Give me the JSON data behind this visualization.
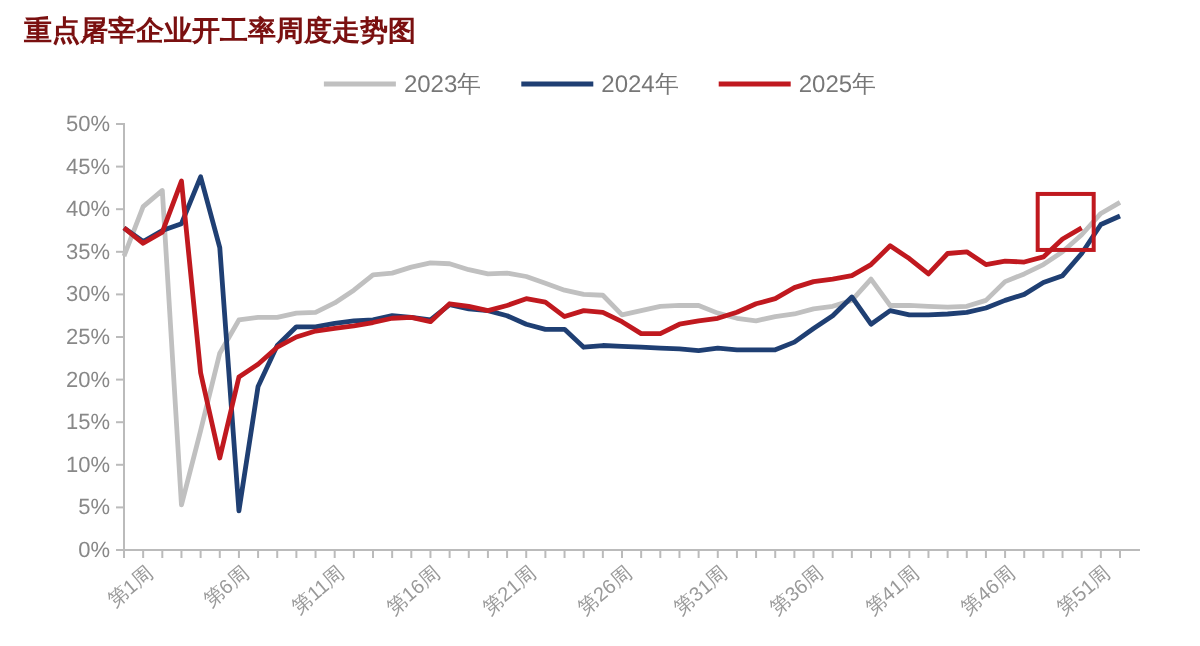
{
  "chart_data": {
    "type": "line",
    "title": "重点屠宰企业开工率周度走势图",
    "categories": [
      "第1周",
      null,
      null,
      null,
      null,
      "第6周",
      null,
      null,
      null,
      null,
      "第11周",
      null,
      null,
      null,
      null,
      "第16周",
      null,
      null,
      null,
      null,
      "第21周",
      null,
      null,
      null,
      null,
      "第26周",
      null,
      null,
      null,
      null,
      "第31周",
      null,
      null,
      null,
      null,
      "第36周",
      null,
      null,
      null,
      null,
      "第41周",
      null,
      null,
      null,
      null,
      "第46周",
      null,
      null,
      null,
      null,
      "第51周",
      null,
      null
    ],
    "ylim": [
      0,
      50
    ],
    "yticks": [
      {
        "value": 0,
        "label": "0%"
      },
      {
        "value": 5,
        "label": "5%"
      },
      {
        "value": 10,
        "label": "10%"
      },
      {
        "value": 15,
        "label": "15%"
      },
      {
        "value": 20,
        "label": "20%"
      },
      {
        "value": 25,
        "label": "25%"
      },
      {
        "value": 30,
        "label": "30%"
      },
      {
        "value": 35,
        "label": "35%"
      },
      {
        "value": 40,
        "label": "40%"
      },
      {
        "value": 45,
        "label": "45%"
      },
      {
        "value": 50,
        "label": "50%"
      }
    ],
    "legend": "top",
    "grid": false,
    "marker": "none",
    "line_style": "solid",
    "series": [
      {
        "name": "2023年",
        "color": "#c0c0c0",
        "values": [
          34.5,
          40.3,
          42.2,
          5.3,
          14,
          23.1,
          27,
          27.3,
          27.3,
          27.8,
          27.9,
          29,
          30.5,
          32.3,
          32.5,
          33.2,
          33.7,
          33.6,
          32.9,
          32.4,
          32.5,
          32.1,
          31.3,
          30.5,
          30,
          29.9,
          27.6,
          28.1,
          28.6,
          28.7,
          28.7,
          27.8,
          27.2,
          26.9,
          27.4,
          27.7,
          28.3,
          28.6,
          29.3,
          31.8,
          28.7,
          28.7,
          28.6,
          28.5,
          28.6,
          29.3,
          31.5,
          32.4,
          33.5,
          35,
          37,
          39.5,
          40.8
        ]
      },
      {
        "name": "2024年",
        "color": "#1f3f73",
        "values": [
          37.8,
          36.2,
          37.5,
          38.3,
          43.8,
          35.5,
          4.6,
          19.2,
          24,
          26.2,
          26.2,
          26.6,
          26.9,
          27,
          27.5,
          27.3,
          27,
          28.8,
          28.3,
          28.1,
          27.5,
          26.5,
          25.9,
          25.9,
          23.8,
          24,
          23.9,
          23.8,
          23.7,
          23.6,
          23.4,
          23.7,
          23.5,
          23.5,
          23.5,
          24.4,
          26,
          27.5,
          29.7,
          26.5,
          28.1,
          27.6,
          27.6,
          27.7,
          27.9,
          28.4,
          29.3,
          30,
          31.4,
          32.2,
          34.8,
          38.2,
          39.2
        ]
      },
      {
        "name": "2025年",
        "color": "#c0191f",
        "values": [
          37.8,
          36,
          37.3,
          43.3,
          20.8,
          10.8,
          20.3,
          21.8,
          23.8,
          25,
          25.7,
          26,
          26.3,
          26.7,
          27.2,
          27.3,
          26.8,
          28.9,
          28.6,
          28.1,
          28.7,
          29.5,
          29.1,
          27.4,
          28.1,
          27.9,
          26.8,
          25.4,
          25.4,
          26.5,
          26.9,
          27.2,
          27.9,
          28.9,
          29.5,
          30.8,
          31.5,
          31.8,
          32.2,
          33.5,
          35.7,
          34.2,
          32.4,
          34.8,
          35,
          33.5,
          33.9,
          33.8,
          34.4,
          36.5,
          37.8,
          null,
          null
        ]
      }
    ]
  }
}
